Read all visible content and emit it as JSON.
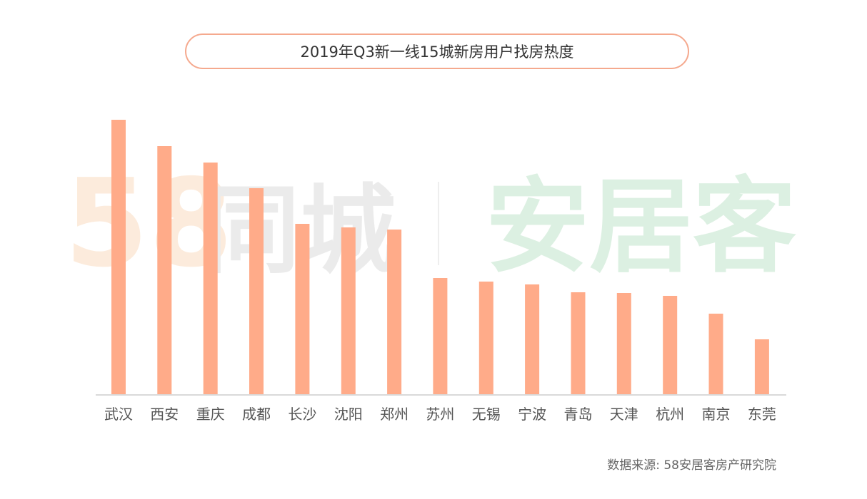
{
  "title": "2019年Q3新一线15城新房用户找房热度",
  "source": "数据来源: 58安居客房产研究院",
  "watermark": {
    "left_number": "58",
    "left_text": "同城",
    "right_text": "安居客"
  },
  "colors": {
    "bar": "#ffab89",
    "title_border": "#f5a98e",
    "axis": "#d9d9d9",
    "label": "#555555"
  },
  "chart_data": {
    "type": "bar",
    "categories": [
      "武汉",
      "西安",
      "重庆",
      "成都",
      "长沙",
      "沈阳",
      "郑州",
      "苏州",
      "无锡",
      "宁波",
      "青岛",
      "天津",
      "杭州",
      "南京",
      "东莞"
    ],
    "values": [
      385,
      348,
      325,
      289,
      239,
      234,
      231,
      163,
      158,
      154,
      143,
      142,
      138,
      113,
      77
    ],
    "title": "2019年Q3新一线15城新房用户找房热度",
    "xlabel": "",
    "ylabel": "",
    "ylim": [
      0,
      400
    ],
    "grid": false,
    "legend": "none"
  }
}
